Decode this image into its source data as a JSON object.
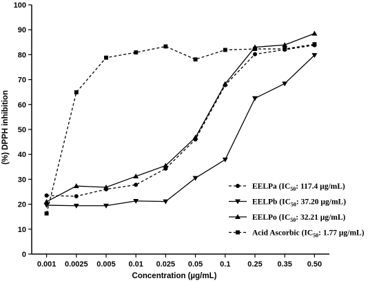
{
  "chart_data": {
    "type": "line",
    "xlabel": "Concentration (µg/mL)",
    "ylabel": "(%) DPPH inhibition",
    "categories": [
      "0.001",
      "0.0025",
      "0.005",
      "0.01",
      "0.025",
      "0.05",
      "0.1",
      "0.25",
      "0.35",
      "0.50"
    ],
    "ylim": [
      0,
      100
    ],
    "yticks": [
      "0",
      "10",
      "20",
      "30",
      "40",
      "50",
      "60",
      "70",
      "80",
      "90",
      "100"
    ],
    "grid": false,
    "legend_position": "bottom-right",
    "series": [
      {
        "name": "EELPa",
        "ic50_prefix": " (IC",
        "ic50_sub": "50",
        "ic50_value": ": 117.4 µg/mL)",
        "marker": "circle",
        "dash": true,
        "values": [
          23.5,
          23.2,
          26.0,
          27.8,
          34.3,
          46.0,
          67.8,
          80.2,
          82.0,
          83.8
        ]
      },
      {
        "name": "EELPb",
        "ic50_prefix": " (IC",
        "ic50_sub": "50",
        "ic50_value": ": 37.20 µg/mL)",
        "marker": "triangle-down",
        "dash": false,
        "values": [
          19.6,
          19.4,
          19.4,
          21.3,
          21.1,
          30.5,
          37.9,
          62.5,
          68.4,
          79.8
        ]
      },
      {
        "name": "EELPo",
        "ic50_prefix": " (IC",
        "ic50_sub": "50",
        "ic50_value": ": 32.21 µg/mL)",
        "marker": "triangle-up",
        "dash": false,
        "values": [
          21.0,
          27.3,
          26.8,
          31.2,
          35.5,
          46.8,
          68.3,
          83.0,
          83.9,
          88.5
        ]
      },
      {
        "name": "Acid Ascorbic",
        "ic50_prefix": " (IC",
        "ic50_sub": "50",
        "ic50_value": ": 1.77 µg/mL)",
        "marker": "square",
        "dash": true,
        "values": [
          16.3,
          64.9,
          78.8,
          80.9,
          83.3,
          78.1,
          81.9,
          82.3,
          82.3,
          84.2
        ]
      }
    ]
  }
}
